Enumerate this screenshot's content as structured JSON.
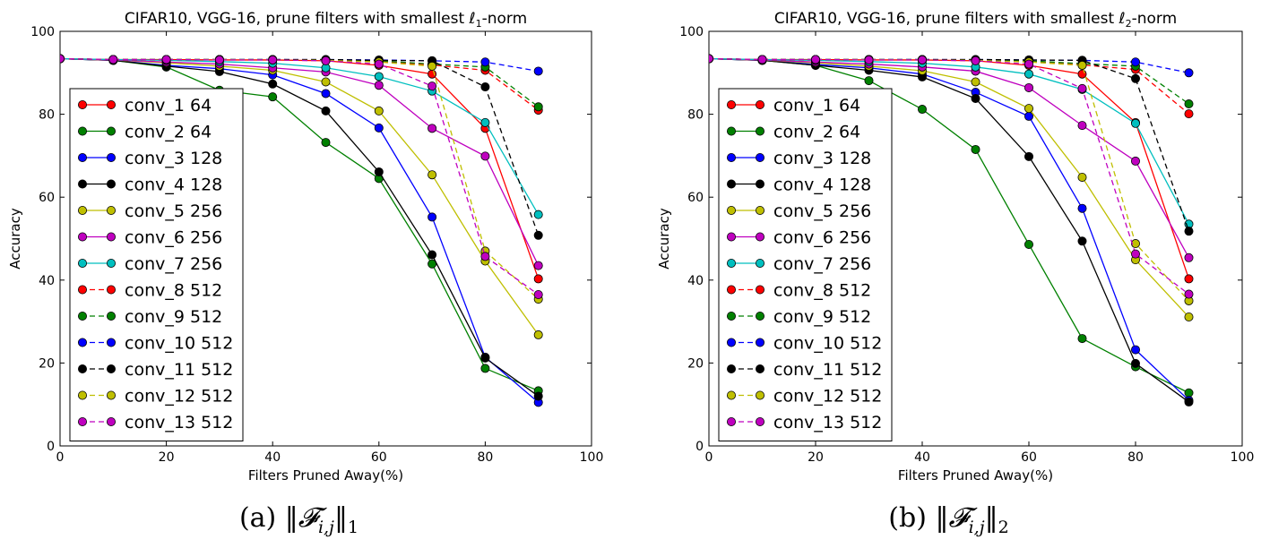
{
  "chart_data": [
    {
      "type": "line",
      "title_prefix": "CIFAR10, VGG-16, prune filters with smallest ",
      "title_norm_symbol": "ℓ",
      "title_norm_sub": "1",
      "title_suffix": "-norm",
      "xlabel": "Filters Pruned Away(%)",
      "ylabel": "Accuracy",
      "xlim": [
        0,
        100
      ],
      "ylim": [
        0,
        100
      ],
      "xticks": [
        "0",
        "20",
        "40",
        "60",
        "80",
        "100"
      ],
      "yticks": [
        "0",
        "20",
        "40",
        "60",
        "80",
        "100"
      ],
      "legend_position": "lower-left",
      "caption_label": "(a)",
      "caption_formula": "‖𝓕",
      "caption_sub": "i,j",
      "caption_norm": "‖",
      "caption_idx": "1",
      "x": [
        0,
        10,
        20,
        30,
        40,
        50,
        60,
        70,
        80,
        90
      ],
      "series": [
        {
          "name": "conv_1 64",
          "color": "#ff0000",
          "dashed": false,
          "values": [
            93.4,
            93.2,
            93.2,
            93.1,
            93.1,
            92.9,
            91.8,
            89.7,
            76.6,
            40.3
          ]
        },
        {
          "name": "conv_2 64",
          "color": "#008000",
          "dashed": false,
          "values": [
            93.4,
            93.0,
            91.4,
            85.8,
            84.2,
            73.2,
            64.5,
            43.9,
            18.7,
            13.3
          ]
        },
        {
          "name": "conv_3 128",
          "color": "#0000ff",
          "dashed": false,
          "values": [
            93.4,
            93.0,
            91.8,
            91.0,
            89.5,
            85.0,
            76.7,
            55.2,
            21.4,
            10.5
          ]
        },
        {
          "name": "conv_4 128",
          "color": "#000000",
          "dashed": false,
          "values": [
            93.4,
            93.0,
            91.6,
            90.3,
            87.3,
            80.8,
            66.1,
            46.1,
            21.2,
            12.0
          ]
        },
        {
          "name": "conv_5 256",
          "color": "#bfbf00",
          "dashed": false,
          "values": [
            93.4,
            93.1,
            92.4,
            91.6,
            90.6,
            87.8,
            80.8,
            65.4,
            44.6,
            26.8
          ]
        },
        {
          "name": "conv_6 256",
          "color": "#bf00bf",
          "dashed": false,
          "values": [
            93.4,
            93.1,
            92.6,
            92.1,
            91.2,
            90.2,
            87.0,
            76.6,
            69.9,
            43.5
          ]
        },
        {
          "name": "conv_7 256",
          "color": "#00bfbf",
          "dashed": false,
          "values": [
            93.4,
            93.2,
            93.0,
            92.7,
            92.3,
            91.2,
            89.1,
            85.6,
            78.0,
            55.8
          ]
        },
        {
          "name": "conv_8 512",
          "color": "#ff0000",
          "dashed": true,
          "values": [
            93.4,
            93.2,
            93.2,
            93.2,
            93.1,
            93.1,
            92.8,
            91.9,
            90.6,
            81.0
          ]
        },
        {
          "name": "conv_9 512",
          "color": "#008000",
          "dashed": true,
          "values": [
            93.4,
            93.2,
            93.2,
            93.2,
            93.2,
            93.1,
            92.9,
            92.1,
            91.4,
            81.8
          ]
        },
        {
          "name": "conv_10 512",
          "color": "#0000ff",
          "dashed": true,
          "values": [
            93.4,
            93.2,
            93.2,
            93.2,
            93.2,
            93.2,
            93.1,
            92.9,
            92.6,
            90.4
          ]
        },
        {
          "name": "conv_11 512",
          "color": "#000000",
          "dashed": true,
          "values": [
            93.4,
            93.2,
            93.2,
            93.2,
            93.2,
            93.2,
            93.0,
            92.9,
            86.6,
            50.8
          ]
        },
        {
          "name": "conv_12 512",
          "color": "#bfbf00",
          "dashed": true,
          "values": [
            93.4,
            93.2,
            93.2,
            93.2,
            93.1,
            93.0,
            92.6,
            91.6,
            47.0,
            35.4
          ]
        },
        {
          "name": "conv_13 512",
          "color": "#bf00bf",
          "dashed": true,
          "values": [
            93.4,
            93.2,
            93.2,
            93.1,
            93.1,
            92.9,
            92.1,
            86.8,
            45.7,
            36.5
          ]
        }
      ]
    },
    {
      "type": "line",
      "title_prefix": "CIFAR10, VGG-16, prune filters with smallest ",
      "title_norm_symbol": "ℓ",
      "title_norm_sub": "2",
      "title_suffix": "-norm",
      "xlabel": "Filters Pruned Away(%)",
      "ylabel": "Accuracy",
      "xlim": [
        0,
        100
      ],
      "ylim": [
        0,
        100
      ],
      "xticks": [
        "0",
        "20",
        "40",
        "60",
        "80",
        "100"
      ],
      "yticks": [
        "0",
        "20",
        "40",
        "60",
        "80",
        "100"
      ],
      "legend_position": "lower-left",
      "caption_label": "(b)",
      "caption_formula": "‖𝓕",
      "caption_sub": "i,j",
      "caption_norm": "‖",
      "caption_idx": "2",
      "x": [
        0,
        10,
        20,
        30,
        40,
        50,
        60,
        70,
        80,
        90
      ],
      "series": [
        {
          "name": "conv_1 64",
          "color": "#ff0000",
          "dashed": false,
          "values": [
            93.4,
            93.2,
            93.2,
            93.1,
            93.1,
            92.9,
            91.8,
            89.7,
            78.0,
            40.3
          ]
        },
        {
          "name": "conv_2 64",
          "color": "#008000",
          "dashed": false,
          "values": [
            93.4,
            93.0,
            91.8,
            88.1,
            81.2,
            71.5,
            48.6,
            25.9,
            19.1,
            12.8
          ]
        },
        {
          "name": "conv_3 128",
          "color": "#0000ff",
          "dashed": false,
          "values": [
            93.4,
            93.0,
            92.0,
            91.2,
            89.7,
            85.3,
            79.5,
            57.3,
            23.2,
            11.0
          ]
        },
        {
          "name": "conv_4 128",
          "color": "#000000",
          "dashed": false,
          "values": [
            93.4,
            93.0,
            91.8,
            90.6,
            89.0,
            83.8,
            69.8,
            49.4,
            19.9,
            10.6
          ]
        },
        {
          "name": "conv_5 256",
          "color": "#bfbf00",
          "dashed": false,
          "values": [
            93.4,
            93.1,
            92.4,
            91.6,
            90.5,
            87.8,
            81.4,
            64.8,
            44.9,
            31.1
          ]
        },
        {
          "name": "conv_6 256",
          "color": "#bf00bf",
          "dashed": false,
          "values": [
            93.4,
            93.1,
            92.6,
            92.1,
            91.4,
            90.4,
            86.4,
            77.3,
            68.7,
            45.4
          ]
        },
        {
          "name": "conv_7 256",
          "color": "#00bfbf",
          "dashed": false,
          "values": [
            93.4,
            93.2,
            93.0,
            92.7,
            92.3,
            91.4,
            89.7,
            86.0,
            77.8,
            53.5
          ]
        },
        {
          "name": "conv_8 512",
          "color": "#ff0000",
          "dashed": true,
          "values": [
            93.4,
            93.2,
            93.2,
            93.2,
            93.1,
            93.1,
            92.8,
            91.9,
            90.8,
            80.1
          ]
        },
        {
          "name": "conv_9 512",
          "color": "#008000",
          "dashed": true,
          "values": [
            93.4,
            93.2,
            93.2,
            93.2,
            93.2,
            93.1,
            92.9,
            92.2,
            91.6,
            82.5
          ]
        },
        {
          "name": "conv_10 512",
          "color": "#0000ff",
          "dashed": true,
          "values": [
            93.4,
            93.2,
            93.2,
            93.2,
            93.2,
            93.2,
            93.1,
            93.0,
            92.6,
            90.0
          ]
        },
        {
          "name": "conv_11 512",
          "color": "#000000",
          "dashed": true,
          "values": [
            93.4,
            93.2,
            93.2,
            93.2,
            93.2,
            93.2,
            93.1,
            93.0,
            88.6,
            51.8
          ]
        },
        {
          "name": "conv_12 512",
          "color": "#bfbf00",
          "dashed": true,
          "values": [
            93.4,
            93.2,
            93.2,
            93.2,
            93.1,
            93.0,
            92.6,
            91.8,
            48.8,
            35.0
          ]
        },
        {
          "name": "conv_13 512",
          "color": "#bf00bf",
          "dashed": true,
          "values": [
            93.4,
            93.2,
            93.2,
            93.1,
            93.1,
            92.9,
            92.1,
            86.2,
            46.3,
            36.6
          ]
        }
      ]
    }
  ]
}
